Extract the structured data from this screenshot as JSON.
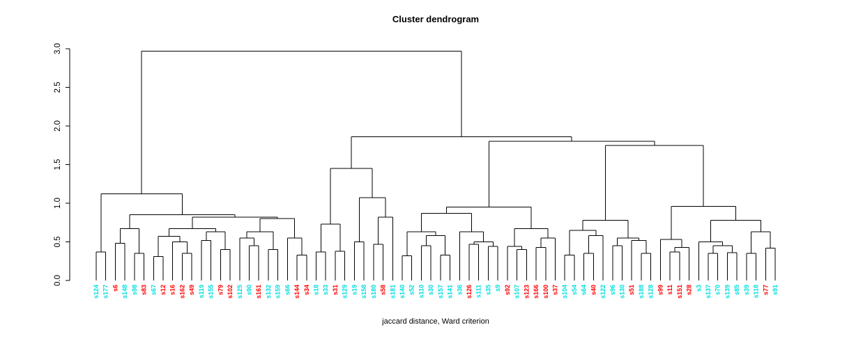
{
  "title": "Cluster dendrogram",
  "xlabel": "jaccard distance, Ward criterion",
  "chart_data": {
    "type": "dendrogram",
    "title": "Cluster dendrogram",
    "xlabel": "jaccard distance, Ward criterion",
    "ylabel": "",
    "ylim": [
      0,
      3
    ],
    "yticks": [
      0.0,
      0.5,
      1.0,
      1.5,
      2.0,
      2.5,
      3.0
    ],
    "grid": false,
    "line_color": "#000000",
    "leaf_colors": {
      "c": "#00dede",
      "r": "#ff0000"
    },
    "leaves": [
      [
        "s124",
        "c"
      ],
      [
        "s177",
        "c"
      ],
      [
        "s6",
        "r"
      ],
      [
        "s148",
        "c"
      ],
      [
        "s98",
        "c"
      ],
      [
        "s83",
        "r"
      ],
      [
        "s67",
        "c"
      ],
      [
        "s12",
        "r"
      ],
      [
        "s16",
        "r"
      ],
      [
        "s162",
        "r"
      ],
      [
        "s49",
        "r"
      ],
      [
        "s119",
        "c"
      ],
      [
        "s155",
        "c"
      ],
      [
        "s79",
        "r"
      ],
      [
        "s102",
        "r"
      ],
      [
        "s125",
        "c"
      ],
      [
        "s90",
        "c"
      ],
      [
        "s161",
        "r"
      ],
      [
        "s132",
        "c"
      ],
      [
        "s159",
        "c"
      ],
      [
        "s66",
        "c"
      ],
      [
        "s144",
        "r"
      ],
      [
        "s34",
        "r"
      ],
      [
        "s18",
        "c"
      ],
      [
        "s33",
        "c"
      ],
      [
        "s31",
        "r"
      ],
      [
        "s129",
        "c"
      ],
      [
        "s19",
        "c"
      ],
      [
        "s158",
        "c"
      ],
      [
        "s180",
        "c"
      ],
      [
        "s58",
        "r"
      ],
      [
        "s181",
        "c"
      ],
      [
        "s140",
        "c"
      ],
      [
        "s52",
        "c"
      ],
      [
        "s110",
        "c"
      ],
      [
        "s30",
        "c"
      ],
      [
        "s157",
        "c"
      ],
      [
        "s141",
        "c"
      ],
      [
        "s36",
        "c"
      ],
      [
        "s126",
        "r"
      ],
      [
        "s111",
        "c"
      ],
      [
        "s35",
        "c"
      ],
      [
        "s9",
        "c"
      ],
      [
        "s92",
        "r"
      ],
      [
        "s107",
        "c"
      ],
      [
        "s123",
        "r"
      ],
      [
        "s166",
        "r"
      ],
      [
        "s100",
        "r"
      ],
      [
        "s37",
        "r"
      ],
      [
        "s104",
        "c"
      ],
      [
        "s54",
        "c"
      ],
      [
        "s64",
        "c"
      ],
      [
        "s40",
        "r"
      ],
      [
        "s122",
        "c"
      ],
      [
        "s96",
        "c"
      ],
      [
        "s130",
        "c"
      ],
      [
        "s51",
        "r"
      ],
      [
        "s188",
        "c"
      ],
      [
        "s128",
        "c"
      ],
      [
        "s99",
        "r"
      ],
      [
        "s11",
        "r"
      ],
      [
        "s151",
        "r"
      ],
      [
        "s28",
        "r"
      ],
      [
        "s3",
        "c"
      ],
      [
        "s137",
        "c"
      ],
      [
        "s70",
        "c"
      ],
      [
        "s139",
        "c"
      ],
      [
        "s85",
        "c"
      ],
      [
        "s39",
        "c"
      ],
      [
        "s118",
        "c"
      ],
      [
        "s77",
        "r"
      ],
      [
        "s91",
        "c"
      ]
    ],
    "tree": [
      2.97,
      [
        1.12,
        [
          0.37,
          "s124",
          "s177"
        ],
        [
          0.85,
          [
            0.67,
            [
              0.48,
              "s6",
              "s148"
            ],
            [
              0.35,
              "s98",
              "s83"
            ]
          ],
          [
            0.82,
            [
              0.67,
              [
                0.57,
                [
                  0.31,
                  "s67",
                  "s12"
                ],
                [
                  0.5,
                  "s16",
                  [
                    0.35,
                    "s162",
                    "s49"
                  ]
                ]
              ],
              [
                0.63,
                [
                  0.52,
                  "s119",
                  "s155"
                ],
                [
                  0.4,
                  "s79",
                  "s102"
                ]
              ]
            ],
            [
              0.8,
              [
                0.63,
                [
                  0.55,
                  "s125",
                  [
                    0.45,
                    "s90",
                    "s161"
                  ]
                ],
                [
                  0.4,
                  "s132",
                  "s159"
                ]
              ],
              [
                0.55,
                "s66",
                [
                  0.33,
                  "s144",
                  "s34"
                ]
              ]
            ]
          ]
        ]
      ],
      [
        1.86,
        [
          1.45,
          [
            0.73,
            [
              0.37,
              "s18",
              "s33"
            ],
            [
              0.38,
              "s31",
              "s129"
            ]
          ],
          [
            1.07,
            [
              0.5,
              "s19",
              "s158"
            ],
            [
              0.82,
              [
                0.47,
                "s180",
                "s58"
              ],
              "s181"
            ]
          ]
        ],
        [
          1.8,
          [
            0.95,
            [
              0.87,
              [
                0.63,
                [
                  0.32,
                  "s140",
                  "s52"
                ],
                [
                  0.58,
                  [
                    0.45,
                    "s110",
                    "s30"
                  ],
                  [
                    0.33,
                    "s157",
                    "s141"
                  ]
                ]
              ],
              [
                0.63,
                "s36",
                [
                  0.5,
                  [
                    0.47,
                    "s126",
                    "s111"
                  ],
                  [
                    0.44,
                    "s35",
                    "s9"
                  ]
                ]
              ]
            ],
            [
              0.67,
              [
                0.44,
                "s92",
                [
                  0.4,
                  "s107",
                  "s123"
                ]
              ],
              [
                0.55,
                [
                  0.43,
                  "s166",
                  "s100"
                ],
                "s37"
              ]
            ]
          ],
          [
            1.75,
            [
              0.78,
              [
                0.65,
                [
                  0.33,
                  "s104",
                  "s54"
                ],
                [
                  0.58,
                  [
                    0.35,
                    "s64",
                    "s40"
                  ],
                  "s122"
                ]
              ],
              [
                0.55,
                [
                  0.45,
                  "s96",
                  "s130"
                ],
                [
                  0.52,
                  "s51",
                  [
                    0.35,
                    "s188",
                    "s128"
                  ]
                ]
              ]
            ],
            [
              0.96,
              [
                0.53,
                "s99",
                [
                  0.43,
                  [
                    0.37,
                    "s11",
                    "s151"
                  ],
                  "s28"
                ]
              ],
              [
                0.78,
                [
                  0.5,
                  "s3",
                  [
                    0.45,
                    [
                      0.35,
                      "s137",
                      "s70"
                    ],
                    [
                      0.36,
                      "s139",
                      "s85"
                    ]
                  ]
                ],
                [
                  0.63,
                  [
                    0.35,
                    "s39",
                    "s118"
                  ],
                  [
                    0.42,
                    "s77",
                    "s91"
                  ]
                ]
              ]
            ]
          ]
        ]
      ]
    ]
  }
}
